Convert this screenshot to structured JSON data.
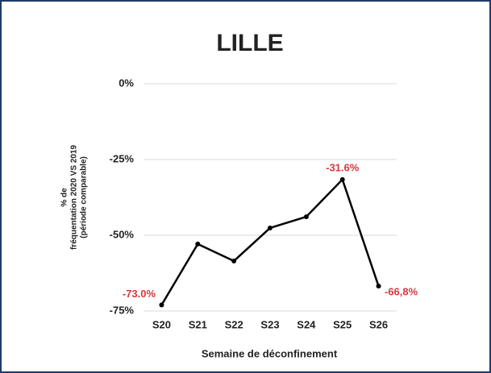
{
  "chart_data": {
    "type": "line",
    "title": "LILLE",
    "ylabel": [
      "% de",
      "fréquentation 2020 VS 2019",
      "(période comparable)"
    ],
    "xlabel": "Semaine de déconfinement",
    "categories": [
      "S20",
      "S21",
      "S22",
      "S23",
      "S24",
      "S25",
      "S26"
    ],
    "series": [
      {
        "color": "#000000",
        "values": [
          -73.0,
          -52.9,
          -58.5,
          -47.6,
          -43.9,
          -31.6,
          -66.8
        ],
        "value_labels": [
          "-73.0%",
          null,
          null,
          null,
          null,
          "-31.6%",
          "-66,8%"
        ],
        "label_color": "#d9363e"
      }
    ],
    "ylim": [
      -75,
      0
    ],
    "yticks": [
      {
        "value": 0,
        "label": "0%"
      },
      {
        "value": -25,
        "label": "-25%"
      },
      {
        "value": -50,
        "label": "-50%"
      },
      {
        "value": -75,
        "label": "-75%"
      }
    ],
    "grid": true
  }
}
